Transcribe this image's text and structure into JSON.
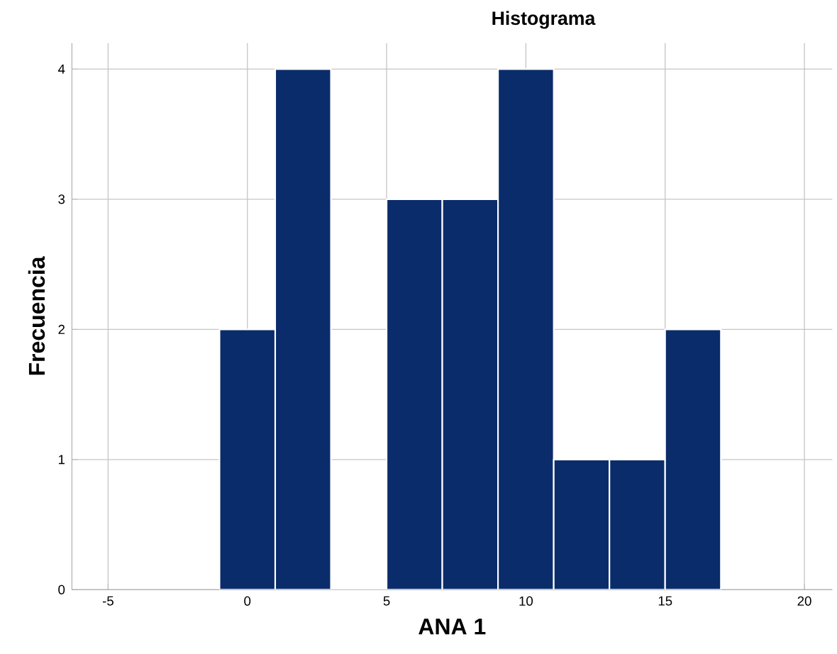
{
  "chart_data": {
    "type": "histogram",
    "title": "Histograma",
    "xlabel": "ANA 1",
    "ylabel": "Frecuencia",
    "bins": [
      -1,
      1,
      3,
      5,
      7,
      9,
      11,
      13,
      15,
      17
    ],
    "values": [
      2,
      4,
      0,
      3,
      3,
      4,
      1,
      1,
      2
    ],
    "color": "#0b2c6a",
    "xlim": [
      -6.3,
      21
    ],
    "xticks": [
      -5,
      0,
      5,
      10,
      15,
      20
    ],
    "ylim": [
      0,
      4.2
    ],
    "yticks": [
      0,
      1,
      2,
      3,
      4
    ],
    "grid": true
  }
}
